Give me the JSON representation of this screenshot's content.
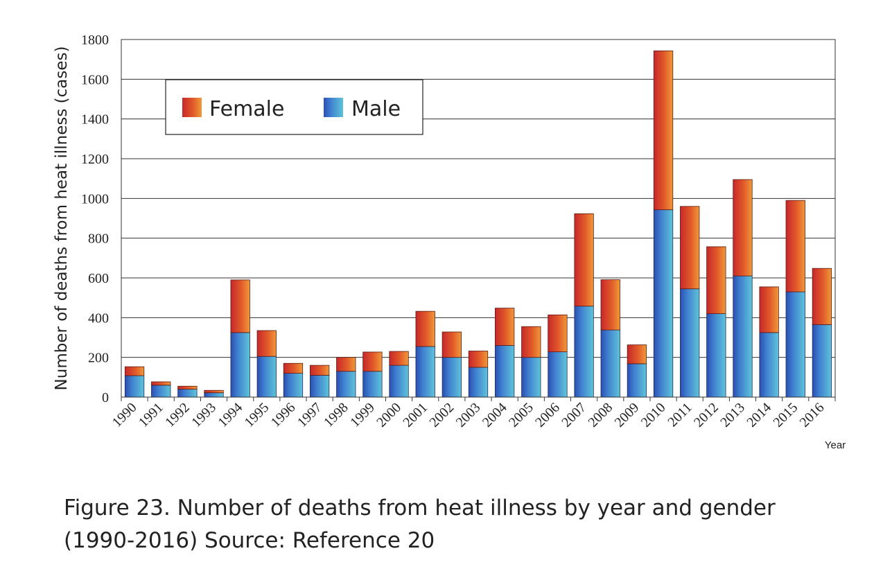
{
  "chart_data": {
    "type": "bar",
    "stacked": true,
    "ylabel": "Number of deaths from heat illness (cases)",
    "xlabel": "Year",
    "ylim": [
      0,
      1800
    ],
    "yticks": [
      0,
      200,
      400,
      600,
      800,
      1000,
      1200,
      1400,
      1600,
      1800
    ],
    "grid": "horizontal",
    "legend_position": "top-left",
    "categories": [
      "1990",
      "1991",
      "1992",
      "1993",
      "1994",
      "1995",
      "1996",
      "1997",
      "1998",
      "1999",
      "2000",
      "2001",
      "2002",
      "2003",
      "2004",
      "2005",
      "2006",
      "2007",
      "2008",
      "2009",
      "2010",
      "2011",
      "2012",
      "2013",
      "2014",
      "2015",
      "2016"
    ],
    "series": [
      {
        "name": "Male",
        "color": "#2f6fc4",
        "values": [
          108,
          60,
          40,
          22,
          325,
          205,
          120,
          110,
          130,
          130,
          160,
          255,
          200,
          150,
          260,
          200,
          228,
          458,
          338,
          168,
          943,
          545,
          420,
          610,
          325,
          530,
          365
        ]
      },
      {
        "name": "Female",
        "color": "#e0502b",
        "values": [
          45,
          17,
          15,
          12,
          265,
          130,
          50,
          50,
          70,
          97,
          70,
          177,
          128,
          82,
          188,
          155,
          186,
          465,
          253,
          95,
          800,
          415,
          337,
          485,
          230,
          460,
          283
        ]
      }
    ]
  },
  "caption": {
    "line1": "Figure 23. Number of deaths from heat illness by year and gender",
    "line2": "(1990-2016)  Source: Reference 20"
  }
}
